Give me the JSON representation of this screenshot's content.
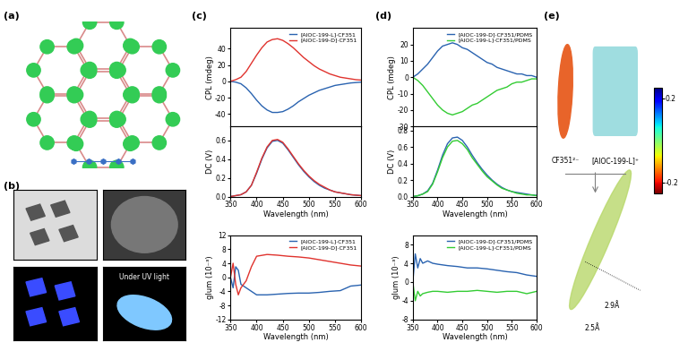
{
  "panel_labels": [
    "(a)",
    "(b)",
    "(c)",
    "(d)",
    "(e)"
  ],
  "panel_b": {
    "caption": "Under UV light"
  },
  "panel_e": {
    "labels": [
      "CF351²⁻",
      "[AlOC-199-L]⁺"
    ],
    "distances": [
      "2.9Å",
      "2.5Å"
    ],
    "colorbar": {
      "range": [
        -0.25,
        0.25
      ],
      "ticks": [
        0.2,
        -0.2
      ]
    }
  },
  "chart_data": [
    {
      "type": "line",
      "y_label": "CPL (mdeg)",
      "tick_labels": "y",
      "legend": "upper right",
      "x": [
        350,
        360,
        370,
        380,
        390,
        400,
        410,
        420,
        430,
        440,
        450,
        460,
        470,
        480,
        490,
        500,
        510,
        520,
        530,
        540,
        550,
        560,
        570,
        580,
        590,
        600
      ],
      "xlim": [
        350,
        600
      ],
      "xticks": [
        350,
        400,
        450,
        500,
        550,
        600
      ],
      "ylim": [
        -55,
        65
      ],
      "yticks": [
        -40,
        -20,
        0,
        20,
        40
      ],
      "series": [
        {
          "name": "[AlOC-199-L]·CF351",
          "color": "#2a63b0",
          "values": [
            0,
            -1,
            -3,
            -8,
            -15,
            -23,
            -30,
            -35,
            -38,
            -38,
            -37,
            -34,
            -30,
            -25,
            -21,
            -17,
            -14,
            -11,
            -9,
            -7,
            -5,
            -4,
            -3,
            -2,
            -1.5,
            -1
          ]
        },
        {
          "name": "[AlOC-199-D]·CF351",
          "color": "#e0332e",
          "values": [
            0,
            2,
            5,
            12,
            22,
            32,
            41,
            48,
            51,
            52,
            50,
            46,
            41,
            35,
            29,
            24,
            19,
            15,
            12,
            9,
            7,
            5,
            4,
            3,
            2,
            1.5
          ]
        }
      ]
    },
    {
      "type": "line",
      "y_label": "DC (V)",
      "x_label": "Wavelength (nm)",
      "x": [
        350,
        360,
        370,
        380,
        390,
        400,
        410,
        420,
        430,
        440,
        450,
        460,
        470,
        480,
        490,
        500,
        510,
        520,
        530,
        540,
        550,
        560,
        570,
        580,
        590,
        600
      ],
      "xlim": [
        350,
        600
      ],
      "xticks": [
        350,
        400,
        450,
        500,
        550,
        600
      ],
      "ylim": [
        0,
        0.75
      ],
      "yticks": [
        {
          "value": 0,
          "label": "0.0"
        },
        0.2,
        0.4,
        0.6
      ],
      "series": [
        {
          "color": "#2a63b0",
          "values": [
            0,
            0.01,
            0.02,
            0.05,
            0.12,
            0.25,
            0.4,
            0.52,
            0.59,
            0.6,
            0.57,
            0.5,
            0.42,
            0.34,
            0.27,
            0.21,
            0.16,
            0.12,
            0.09,
            0.07,
            0.05,
            0.04,
            0.03,
            0.02,
            0.015,
            0.01
          ]
        },
        {
          "color": "#e0332e",
          "values": [
            0,
            0.01,
            0.02,
            0.05,
            0.12,
            0.26,
            0.41,
            0.53,
            0.6,
            0.61,
            0.58,
            0.51,
            0.43,
            0.35,
            0.28,
            0.22,
            0.17,
            0.13,
            0.1,
            0.07,
            0.05,
            0.04,
            0.03,
            0.02,
            0.015,
            0.01
          ]
        }
      ]
    },
    {
      "type": "line",
      "y_label": "glum (10⁻³)",
      "x_label": "Wavelength (nm)",
      "legend": "upper right",
      "x": [
        350,
        355,
        360,
        365,
        370,
        380,
        390,
        400,
        420,
        440,
        460,
        480,
        500,
        520,
        540,
        560,
        580,
        600
      ],
      "xlim": [
        350,
        600
      ],
      "xticks": [
        350,
        400,
        450,
        500,
        550,
        600
      ],
      "ylim": [
        -12,
        12
      ],
      "yticks": [
        -12,
        -8,
        -4,
        0,
        4,
        8,
        12
      ],
      "series": [
        {
          "name": "[AlOC-199-L]·CF351",
          "color": "#2a63b0",
          "values": [
            0,
            -3,
            3,
            2,
            -2,
            -3,
            -4,
            -5,
            -5,
            -4.8,
            -4.6,
            -4.5,
            -4.5,
            -4.3,
            -4,
            -3.8,
            -2.5,
            -2.2
          ]
        },
        {
          "name": "[AlOC-199-D]·CF351",
          "color": "#e0332e",
          "values": [
            0,
            4,
            -2,
            -5,
            -3,
            -1,
            3,
            6,
            6.5,
            6.3,
            6,
            5.8,
            5.5,
            5,
            4.5,
            4,
            3.5,
            3.2
          ]
        }
      ]
    },
    {
      "type": "line",
      "y_label": "CPL (mdeg)",
      "tick_labels": "y",
      "legend": "upper right",
      "x": [
        350,
        360,
        370,
        380,
        390,
        400,
        410,
        420,
        430,
        440,
        450,
        460,
        470,
        480,
        490,
        500,
        510,
        520,
        530,
        540,
        550,
        560,
        570,
        580,
        590,
        600
      ],
      "xlim": [
        350,
        600
      ],
      "xticks": [
        350,
        400,
        450,
        500,
        550,
        600
      ],
      "ylim": [
        -30,
        30
      ],
      "yticks": [
        -30,
        -20,
        -10,
        0,
        10,
        20
      ],
      "series": [
        {
          "name": "[AlOC-199-D]·CF351/PDMS",
          "color": "#2a63b0",
          "values": [
            0,
            2,
            5,
            8,
            12,
            16,
            19,
            20,
            21,
            20,
            18,
            17,
            15,
            13,
            11,
            9,
            8,
            6,
            5,
            4,
            3,
            2,
            2,
            1,
            1,
            0
          ]
        },
        {
          "name": "[AlOC-199-L]·CF351/PDMS",
          "color": "#33cc33",
          "values": [
            0,
            -2,
            -5,
            -9,
            -13,
            -17,
            -20,
            -22,
            -23,
            -22,
            -21,
            -19,
            -17,
            -16,
            -14,
            -12,
            -10,
            -8,
            -7,
            -6,
            -4,
            -3,
            -3,
            -2,
            -1,
            -1
          ]
        }
      ]
    },
    {
      "type": "line",
      "y_label": "DC (V)",
      "x_label": "Wavelength (nm)",
      "x": [
        350,
        360,
        370,
        380,
        390,
        400,
        410,
        420,
        430,
        440,
        450,
        460,
        470,
        480,
        490,
        500,
        510,
        520,
        530,
        540,
        550,
        560,
        570,
        580,
        590,
        600
      ],
      "xlim": [
        350,
        600
      ],
      "xticks": [
        350,
        400,
        450,
        500,
        550,
        600
      ],
      "ylim": [
        0,
        0.85
      ],
      "yticks": [
        {
          "value": 0,
          "label": "0.0"
        },
        0.2,
        0.4,
        0.6,
        0.8
      ],
      "series": [
        {
          "color": "#2a63b0",
          "values": [
            0,
            0.01,
            0.03,
            0.07,
            0.16,
            0.32,
            0.5,
            0.64,
            0.71,
            0.72,
            0.68,
            0.6,
            0.5,
            0.41,
            0.33,
            0.26,
            0.2,
            0.15,
            0.11,
            0.08,
            0.06,
            0.05,
            0.04,
            0.03,
            0.02,
            0.015
          ]
        },
        {
          "color": "#33cc33",
          "values": [
            0,
            0.01,
            0.03,
            0.06,
            0.15,
            0.3,
            0.47,
            0.6,
            0.67,
            0.68,
            0.64,
            0.57,
            0.47,
            0.39,
            0.31,
            0.24,
            0.19,
            0.14,
            0.1,
            0.08,
            0.06,
            0.04,
            0.03,
            0.02,
            0.02,
            0.01
          ]
        }
      ]
    },
    {
      "type": "line",
      "y_label": "glum (10⁻³)",
      "x_label": "Wavelength (nm)",
      "legend": "upper right",
      "x": [
        350,
        355,
        360,
        365,
        370,
        380,
        390,
        400,
        420,
        440,
        460,
        480,
        500,
        520,
        540,
        560,
        580,
        600
      ],
      "xlim": [
        350,
        600
      ],
      "xticks": [
        350,
        400,
        450,
        500,
        550,
        600
      ],
      "ylim": [
        -8,
        10
      ],
      "yticks": [
        -8,
        -4,
        0,
        4,
        8
      ],
      "series": [
        {
          "name": "[AlOC-199-D]·CF351/PDMS",
          "color": "#2a63b0",
          "values": [
            0,
            6,
            3,
            5,
            4,
            4.5,
            4,
            3.8,
            3.5,
            3.3,
            3,
            3,
            2.8,
            2.5,
            2.2,
            2,
            1.5,
            1.2
          ]
        },
        {
          "name": "[AlOC-199-L]·CF351/PDMS",
          "color": "#33cc33",
          "values": [
            0,
            -4,
            -2,
            -3,
            -2.5,
            -2.2,
            -2,
            -2,
            -2.2,
            -2,
            -2,
            -1.8,
            -2,
            -2.2,
            -2,
            -2,
            -2.5,
            -2
          ]
        }
      ]
    }
  ]
}
